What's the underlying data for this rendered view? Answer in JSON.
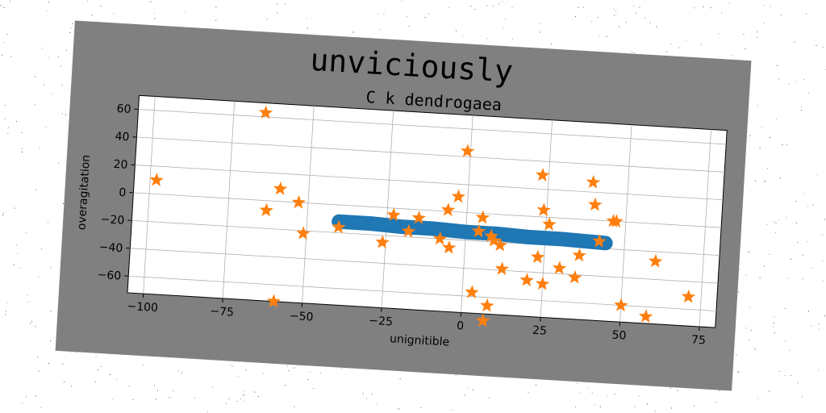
{
  "colors": {
    "figure_bg": "#808080",
    "axes_bg": "#ffffff",
    "grid": "#b0b0b0",
    "line_series": "#1f77b4",
    "star_series": "#ff7f0e"
  },
  "chart_data": {
    "type": "scatter",
    "title": "unviciously",
    "subtitle": "C k dendrogaea",
    "xlabel": "unignitible",
    "ylabel": "overagitation",
    "xlim": [
      -105,
      80
    ],
    "ylim": [
      -72,
      70
    ],
    "xticks": [
      -100,
      -75,
      -50,
      -25,
      0,
      25,
      50,
      75
    ],
    "yticks": [
      -60,
      -40,
      -20,
      0,
      20,
      40,
      60
    ],
    "xtick_labels": [
      "−100",
      "−75",
      "−50",
      "−25",
      "0",
      "25",
      "50",
      "75"
    ],
    "ytick_labels": [
      "−60",
      "−40",
      "−20",
      "0",
      "20",
      "40",
      "60"
    ],
    "grid": true,
    "series": [
      {
        "type": "line",
        "x": [
          -40,
          -30,
          -20,
          -10,
          0,
          10,
          20,
          30,
          44
        ],
        "y": [
          -12,
          -12,
          -13,
          -13,
          -14,
          -14,
          -15,
          -15,
          -16
        ]
      },
      {
        "type": "scatter",
        "marker": "star",
        "x": [
          -98,
          -65,
          -63,
          -59,
          -53,
          -51,
          -59,
          -40,
          -26,
          -23,
          -18,
          -15,
          -8,
          -6,
          -5,
          -3,
          -1,
          4,
          5,
          8,
          9,
          11,
          12,
          3,
          8,
          7,
          20,
          23,
          23,
          24,
          26,
          25,
          30,
          35,
          36,
          39,
          40,
          42,
          46,
          47,
          50,
          58,
          60,
          71
        ],
        "y": [
          10,
          63,
          -7,
          9,
          0,
          -22,
          -72,
          -16,
          -25,
          -5,
          -16,
          -6,
          -20,
          1,
          -26,
          11,
          44,
          -13,
          -3,
          -16,
          -19,
          -22,
          -39,
          -57,
          -66,
          -77,
          -46,
          30,
          -29,
          5,
          -5,
          -48,
          -36,
          -42,
          -26,
          27,
          11,
          -15,
          0,
          0,
          -60,
          -67,
          -27,
          -51
        ]
      }
    ]
  }
}
